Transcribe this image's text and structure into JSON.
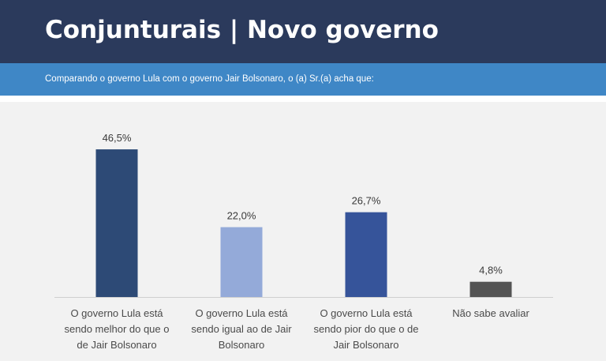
{
  "header": {
    "title": "Conjunturais | Novo governo",
    "subtitle": "Comparando o governo Lula com o governo Jair Bolsonaro, o (a) Sr.(a) acha que:"
  },
  "colors": {
    "title_bar": "#2b3a5c",
    "subtitle_bar": "#3f87c6",
    "background": "#f2f2f2"
  },
  "chart_data": {
    "type": "bar",
    "title": "",
    "xlabel": "",
    "ylabel": "",
    "ylim": [
      0,
      50
    ],
    "grid": false,
    "legend": "none",
    "categories": [
      [
        "O governo Lula está",
        "sendo melhor do que o",
        "de Jair Bolsonaro"
      ],
      [
        "O governo Lula está",
        "sendo igual ao de Jair",
        "Bolsonaro"
      ],
      [
        "O governo Lula está",
        "sendo pior do que o de",
        "Jair Bolsonaro"
      ],
      [
        "Não sabe avaliar"
      ]
    ],
    "values": [
      46.5,
      22.0,
      26.7,
      4.8
    ],
    "value_labels": [
      "46,5%",
      "22,0%",
      "26,7%",
      "4,8%"
    ],
    "bar_colors": [
      "#2d4a76",
      "#94aad9",
      "#36549a",
      "#545454"
    ]
  }
}
